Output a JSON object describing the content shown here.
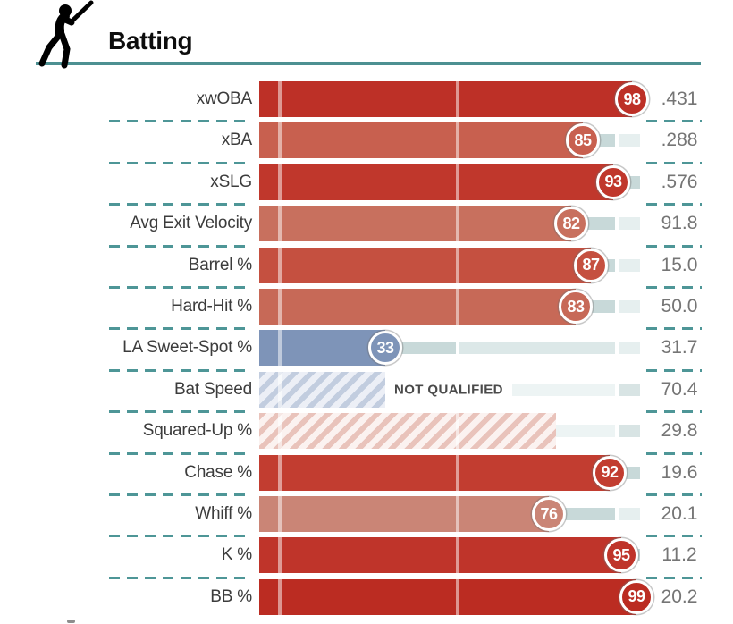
{
  "header": {
    "title": "Batting",
    "icon": "batter-swing-icon",
    "underline_color": "#4d9092"
  },
  "separator_color": "#4e9697",
  "slider": {
    "scale_min": 0,
    "scale_max": 100,
    "tick_positions_pct": [
      5.4,
      52.1,
      93.9
    ],
    "rail_color": "#dce8e8",
    "rail_dark_color": "#c8d9d9",
    "rail_light_color": "#e6efef",
    "rail_unranked_color": "#edf4f4",
    "rail_unranked_end_color": "#d8e4e4"
  },
  "hatch": {
    "blue_stripe": "#c2cddf",
    "blue_bg": "#eceff6",
    "red_stripe": "#e9c3bb",
    "red_bg": "#fbf2f0"
  },
  "not_qualified_text": "NOT QUALIFIED",
  "rows": [
    {
      "label": "xwOBA",
      "percentile": 98,
      "value": ".431",
      "color": "#bd3027",
      "kind": "ranked"
    },
    {
      "label": "xBA",
      "percentile": 85,
      "value": ".288",
      "color": "#c8604f",
      "kind": "ranked"
    },
    {
      "label": "xSLG",
      "percentile": 93,
      "value": ".576",
      "color": "#c0372c",
      "kind": "ranked"
    },
    {
      "label": "Avg Exit Velocity",
      "percentile": 82,
      "value": "91.8",
      "color": "#c8705e",
      "kind": "ranked"
    },
    {
      "label": "Barrel %",
      "percentile": 87,
      "value": "15.0",
      "color": "#c55040",
      "kind": "ranked"
    },
    {
      "label": "Hard-Hit %",
      "percentile": 83,
      "value": "50.0",
      "color": "#c76957",
      "kind": "ranked"
    },
    {
      "label": "LA Sweet-Spot %",
      "percentile": 33,
      "value": "31.7",
      "color": "#7e94b8",
      "kind": "ranked"
    },
    {
      "label": "Bat Speed",
      "percentile": null,
      "value": "70.4",
      "color": null,
      "kind": "not-qualified",
      "hatch_pct": 33,
      "hatch_style": "blue",
      "note": "NOT QUALIFIED"
    },
    {
      "label": "Squared-Up %",
      "percentile": null,
      "value": "29.8",
      "color": null,
      "kind": "unranked",
      "hatch_pct": 78,
      "hatch_style": "red"
    },
    {
      "label": "Chase %",
      "percentile": 92,
      "value": "19.6",
      "color": "#c23d30",
      "kind": "ranked"
    },
    {
      "label": "Whiff %",
      "percentile": 76,
      "value": "20.1",
      "color": "#ca8576",
      "kind": "ranked"
    },
    {
      "label": "K %",
      "percentile": 95,
      "value": "11.2",
      "color": "#bf342a",
      "kind": "ranked"
    },
    {
      "label": "BB %",
      "percentile": 99,
      "value": "20.2",
      "color": "#bb2c22",
      "kind": "ranked"
    }
  ],
  "chart_data": {
    "type": "bar",
    "title": "Batting",
    "orientation": "horizontal",
    "xlim": [
      0,
      100
    ],
    "grid": false,
    "categories": [
      "xwOBA",
      "xBA",
      "xSLG",
      "Avg Exit Velocity",
      "Barrel %",
      "Hard-Hit %",
      "LA Sweet-Spot %",
      "Bat Speed",
      "Squared-Up %",
      "Chase %",
      "Whiff %",
      "K %",
      "BB %"
    ],
    "series": [
      {
        "name": "Percentile",
        "values": [
          98,
          85,
          93,
          82,
          87,
          83,
          33,
          null,
          null,
          92,
          76,
          95,
          99
        ]
      },
      {
        "name": "Stat Value",
        "values": [
          ".431",
          ".288",
          ".576",
          "91.8",
          "15.0",
          "50.0",
          "31.7",
          "70.4",
          "29.8",
          "19.6",
          "20.1",
          "11.2",
          "20.2"
        ]
      }
    ],
    "annotations": [
      "Bat Speed: NOT QUALIFIED (hatched)",
      "Squared-Up %: unranked (hatched)"
    ]
  }
}
